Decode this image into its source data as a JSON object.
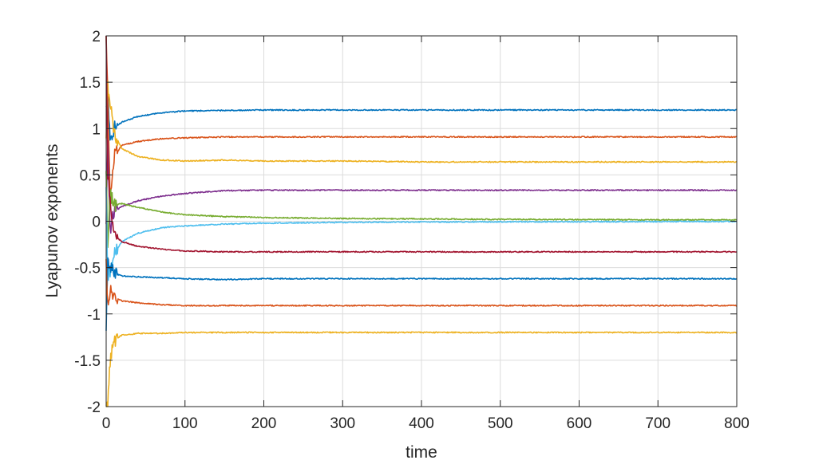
{
  "chart_data": {
    "type": "line",
    "title": "",
    "xlabel": "time",
    "ylabel": "Lyapunov exponents",
    "xlim": [
      0,
      800
    ],
    "ylim": [
      -2,
      2
    ],
    "xticks": [
      0,
      100,
      200,
      300,
      400,
      500,
      600,
      700,
      800
    ],
    "yticks": [
      -2,
      -1.5,
      -1,
      -0.5,
      0,
      0.5,
      1,
      1.5,
      2
    ],
    "xtick_labels": [
      "0",
      "100",
      "200",
      "300",
      "400",
      "500",
      "600",
      "700",
      "800"
    ],
    "ytick_labels": [
      "-2",
      "-1.5",
      "-1",
      "-0.5",
      "0",
      "0.5",
      "1",
      "1.5",
      "2"
    ],
    "grid": true,
    "legend": "none",
    "series": [
      {
        "color": "#0072BD",
        "x": [
          0,
          2,
          5,
          10,
          20,
          40,
          70,
          100,
          150,
          200,
          300,
          400,
          500,
          600,
          700,
          800
        ],
        "y": [
          1.2,
          1.45,
          0.85,
          1.0,
          1.07,
          1.13,
          1.17,
          1.19,
          1.195,
          1.2,
          1.2,
          1.2,
          1.2,
          1.2,
          1.2,
          1.2
        ]
      },
      {
        "color": "#D95319",
        "x": [
          0,
          2,
          5,
          10,
          20,
          40,
          70,
          100,
          150,
          200,
          300,
          400,
          500,
          600,
          700,
          800
        ],
        "y": [
          2.0,
          1.4,
          0.25,
          0.7,
          0.82,
          0.86,
          0.89,
          0.9,
          0.91,
          0.91,
          0.91,
          0.91,
          0.91,
          0.91,
          0.91,
          0.91
        ]
      },
      {
        "color": "#EDB120",
        "x": [
          0,
          2,
          5,
          10,
          20,
          40,
          70,
          100,
          150,
          200,
          300,
          400,
          500,
          600,
          700,
          800
        ],
        "y": [
          0.9,
          1.45,
          1.3,
          0.95,
          0.78,
          0.7,
          0.66,
          0.65,
          0.66,
          0.65,
          0.65,
          0.64,
          0.64,
          0.64,
          0.64,
          0.64
        ]
      },
      {
        "color": "#7E2F8E",
        "x": [
          0,
          2,
          5,
          10,
          20,
          40,
          70,
          100,
          150,
          200,
          300,
          400,
          500,
          600,
          700,
          800
        ],
        "y": [
          0.0,
          0.9,
          -0.1,
          0.1,
          0.16,
          0.22,
          0.27,
          0.3,
          0.33,
          0.335,
          0.335,
          0.335,
          0.335,
          0.335,
          0.335,
          0.335
        ]
      },
      {
        "color": "#77AC30",
        "x": [
          0,
          2,
          5,
          10,
          20,
          40,
          70,
          100,
          150,
          200,
          300,
          400,
          500,
          600,
          700,
          800
        ],
        "y": [
          0.6,
          -0.3,
          0.3,
          0.18,
          0.19,
          0.15,
          0.1,
          0.07,
          0.05,
          0.04,
          0.03,
          0.025,
          0.02,
          0.018,
          0.015,
          0.015
        ]
      },
      {
        "color": "#4DBEEE",
        "x": [
          0,
          2,
          5,
          10,
          20,
          40,
          70,
          100,
          150,
          200,
          300,
          400,
          500,
          600,
          700,
          800
        ],
        "y": [
          0.3,
          -0.6,
          -0.55,
          -0.35,
          -0.22,
          -0.13,
          -0.07,
          -0.05,
          -0.03,
          -0.02,
          -0.012,
          -0.008,
          -0.006,
          -0.005,
          -0.004,
          -0.003
        ]
      },
      {
        "color": "#A2142F",
        "x": [
          0,
          2,
          5,
          10,
          20,
          40,
          70,
          100,
          150,
          200,
          300,
          400,
          500,
          600,
          700,
          800
        ],
        "y": [
          2.0,
          0.5,
          0.2,
          -0.15,
          -0.22,
          -0.27,
          -0.3,
          -0.32,
          -0.33,
          -0.33,
          -0.33,
          -0.33,
          -0.33,
          -0.33,
          -0.33,
          -0.33
        ]
      },
      {
        "color": "#0072BD",
        "x": [
          0,
          2,
          5,
          10,
          20,
          40,
          70,
          100,
          150,
          200,
          300,
          400,
          500,
          600,
          700,
          800
        ],
        "y": [
          -1.2,
          -0.4,
          -0.5,
          -0.56,
          -0.59,
          -0.6,
          -0.61,
          -0.62,
          -0.63,
          -0.62,
          -0.62,
          -0.62,
          -0.62,
          -0.62,
          -0.62,
          -0.62
        ]
      },
      {
        "color": "#D95319",
        "x": [
          0,
          2,
          5,
          10,
          20,
          40,
          70,
          100,
          150,
          200,
          300,
          400,
          500,
          600,
          700,
          800
        ],
        "y": [
          -0.4,
          -0.9,
          -0.75,
          -0.82,
          -0.86,
          -0.88,
          -0.9,
          -0.91,
          -0.91,
          -0.91,
          -0.91,
          -0.91,
          -0.91,
          -0.91,
          -0.91,
          -0.91
        ]
      },
      {
        "color": "#EDB120",
        "x": [
          0,
          2,
          5,
          10,
          20,
          40,
          70,
          100,
          150,
          200,
          300,
          400,
          500,
          600,
          700,
          800
        ],
        "y": [
          -2.0,
          -2.0,
          -1.5,
          -1.28,
          -1.23,
          -1.21,
          -1.21,
          -1.2,
          -1.2,
          -1.2,
          -1.2,
          -1.2,
          -1.2,
          -1.2,
          -1.2,
          -1.2
        ]
      }
    ]
  }
}
